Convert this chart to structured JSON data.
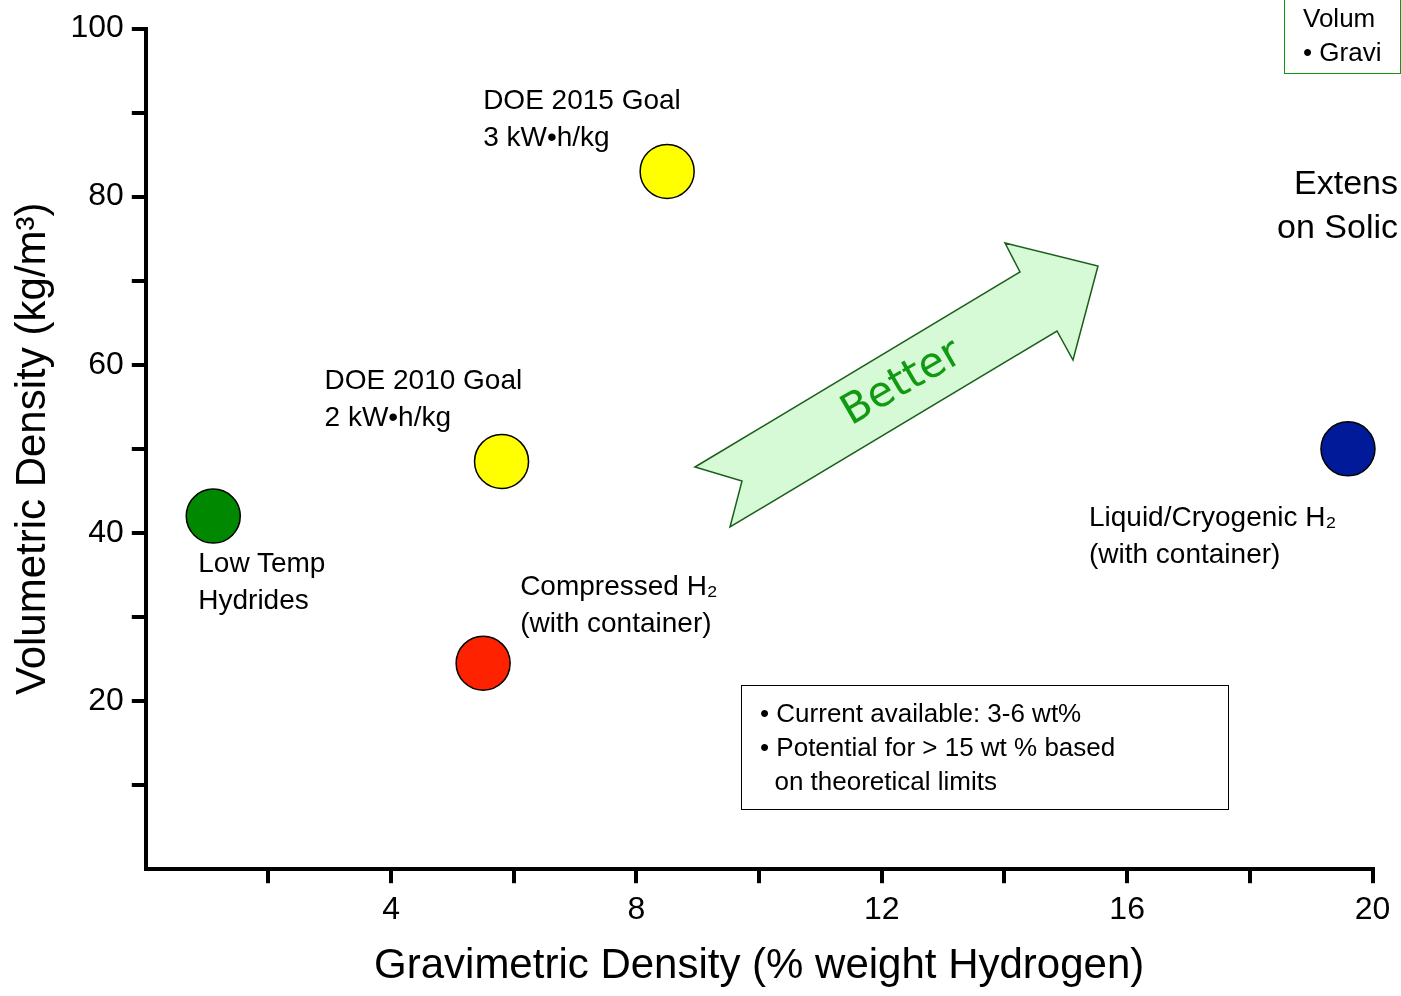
{
  "chart_data": {
    "type": "scatter",
    "xlabel": "Gravimetric Density (% weight Hydrogen)",
    "ylabel": "Volumetric Density (kg/m³)",
    "xlim": [
      0,
      20
    ],
    "xticks": [
      {
        "value": 2,
        "label": null
      },
      4,
      {
        "value": 6,
        "label": null
      },
      8,
      {
        "value": 10,
        "label": null
      },
      12,
      {
        "value": 14,
        "label": null
      },
      16,
      {
        "value": 18,
        "label": null
      },
      20
    ],
    "ylim": [
      0,
      100
    ],
    "yticks": [
      {
        "value": 10,
        "label": null
      },
      20,
      {
        "value": 30,
        "label": null
      },
      40,
      {
        "value": 50,
        "label": null
      },
      60,
      {
        "value": 70,
        "label": null
      },
      80,
      {
        "value": 90,
        "label": null
      },
      100
    ],
    "grid": false,
    "legend": false,
    "marker": "circle",
    "series": [
      {
        "name": "Low Temp\nHydrides",
        "color": "#008800",
        "x": [
          1.1
        ],
        "values": [
          42
        ]
      },
      {
        "name": "DOE 2010 Goal\n2 kW•h/kg",
        "color": "#ffff00",
        "x": [
          5.8
        ],
        "values": [
          48.5
        ]
      },
      {
        "name": "DOE 2015 Goal\n3 kW•h/kg",
        "color": "#ffff00",
        "x": [
          8.5
        ],
        "values": [
          83
        ]
      },
      {
        "name": "Compressed H₂\n(with container)",
        "color": "#ff2200",
        "x": [
          5.5
        ],
        "values": [
          24.5
        ]
      },
      {
        "name": "Liquid/Cryogenic H₂\n(with container)",
        "color": "#001a99",
        "x": [
          19.6
        ],
        "values": [
          50
        ]
      }
    ],
    "annotations": [
      "Better",
      "• Current available: 3-6 wt%",
      "• Potential for > 15 wt % based\non theoretical limits",
      "Extens",
      "on Solic",
      "Volum",
      "• Gravi"
    ]
  }
}
